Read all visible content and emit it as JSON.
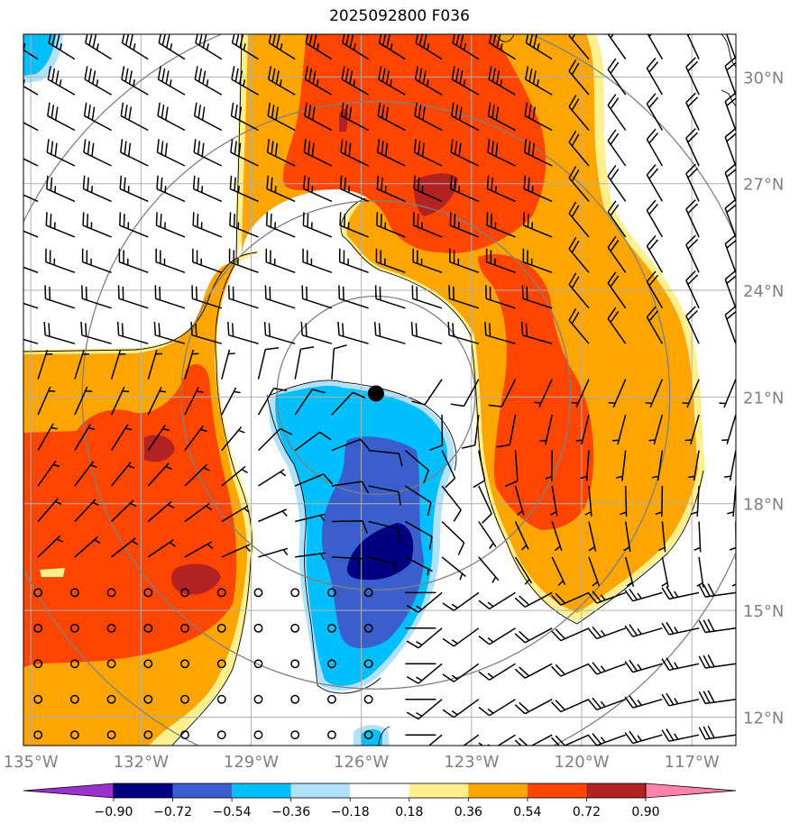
{
  "title": "2025092800 F036",
  "map": {
    "lon_range": [
      -135.2,
      -115.8
    ],
    "lat_range": [
      11.2,
      31.2
    ],
    "lon_ticks": [
      {
        "value": -135,
        "label": "135°W"
      },
      {
        "value": -132,
        "label": "132°W"
      },
      {
        "value": -129,
        "label": "129°W"
      },
      {
        "value": -126,
        "label": "126°W"
      },
      {
        "value": -123,
        "label": "123°W"
      },
      {
        "value": -120,
        "label": "120°W"
      },
      {
        "value": -117,
        "label": "117°W"
      }
    ],
    "lat_ticks": [
      {
        "value": 30,
        "label": "30°N"
      },
      {
        "value": 27,
        "label": "27°N"
      },
      {
        "value": 24,
        "label": "24°N"
      },
      {
        "value": 21,
        "label": "21°N"
      },
      {
        "value": 18,
        "label": "18°N"
      },
      {
        "value": 15,
        "label": "15°N"
      },
      {
        "value": 12,
        "label": "12°N"
      }
    ],
    "storm_center": {
      "lon": -125.6,
      "lat": 21.1
    },
    "range_rings_deg": [
      2.7,
      5.3,
      8.0,
      10.7
    ],
    "colors": {
      "fill_low3": "#000080",
      "fill_low2": "#3a5fcd",
      "fill_low1": "#00bfff",
      "fill_low0": "#b0e2ff",
      "fill_hi0": "#fff08f",
      "fill_hi1": "#ffa500",
      "fill_hi2": "#ff4500",
      "fill_hi3": "#b22222",
      "grid": "#b0b0b0",
      "ring": "#808080"
    }
  },
  "colorbar": {
    "colors": [
      "#9932cc",
      "#000080",
      "#3a5fcd",
      "#00bfff",
      "#b0e2ff",
      "#ffffff",
      "#fff08f",
      "#ffa500",
      "#ff4500",
      "#b22222",
      "#ff82ab"
    ],
    "labels": [
      "−0.90",
      "−0.72",
      "−0.54",
      "−0.36",
      "−0.18",
      "0.18",
      "0.36",
      "0.54",
      "0.72",
      "0.90"
    ]
  }
}
